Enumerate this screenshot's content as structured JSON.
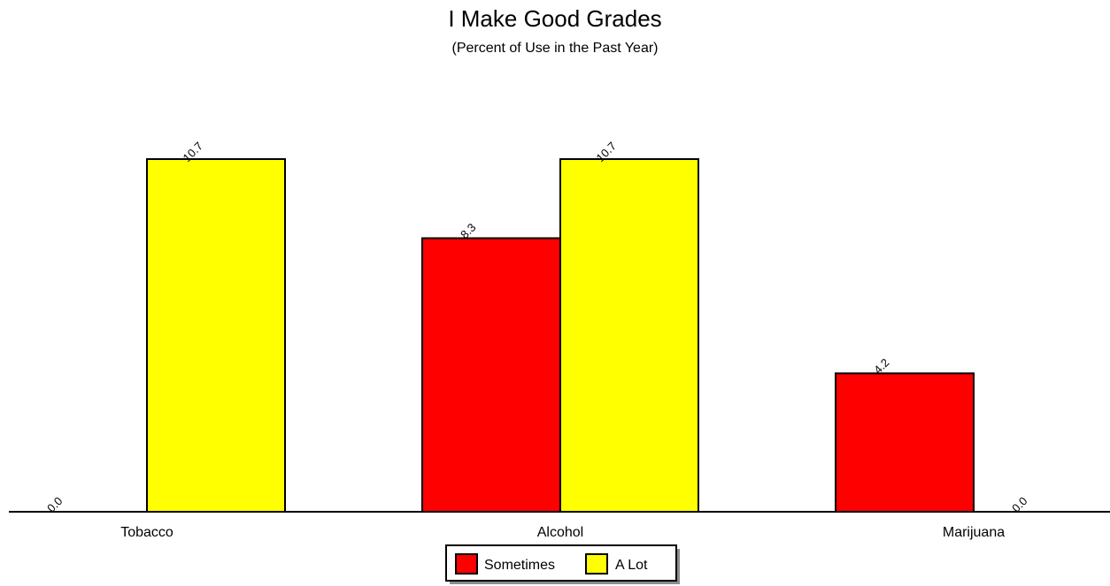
{
  "chart_data": {
    "type": "bar",
    "title": "I Make Good Grades",
    "subtitle": "(Percent of Use in the Past Year)",
    "categories": [
      "Tobacco",
      "Alcohol",
      "Marijuana"
    ],
    "series": [
      {
        "name": "Sometimes",
        "color": "#ff0000",
        "values": [
          0.0,
          8.3,
          4.2
        ]
      },
      {
        "name": "A Lot",
        "color": "#ffff00",
        "values": [
          10.7,
          10.7,
          0.0
        ]
      }
    ],
    "value_labels": [
      [
        "0.0",
        "8.3",
        "4.2"
      ],
      [
        "10.7",
        "10.7",
        "0.0"
      ]
    ],
    "ylim": [
      0,
      10.7
    ],
    "grid": false,
    "legend_position": "bottom-center"
  }
}
